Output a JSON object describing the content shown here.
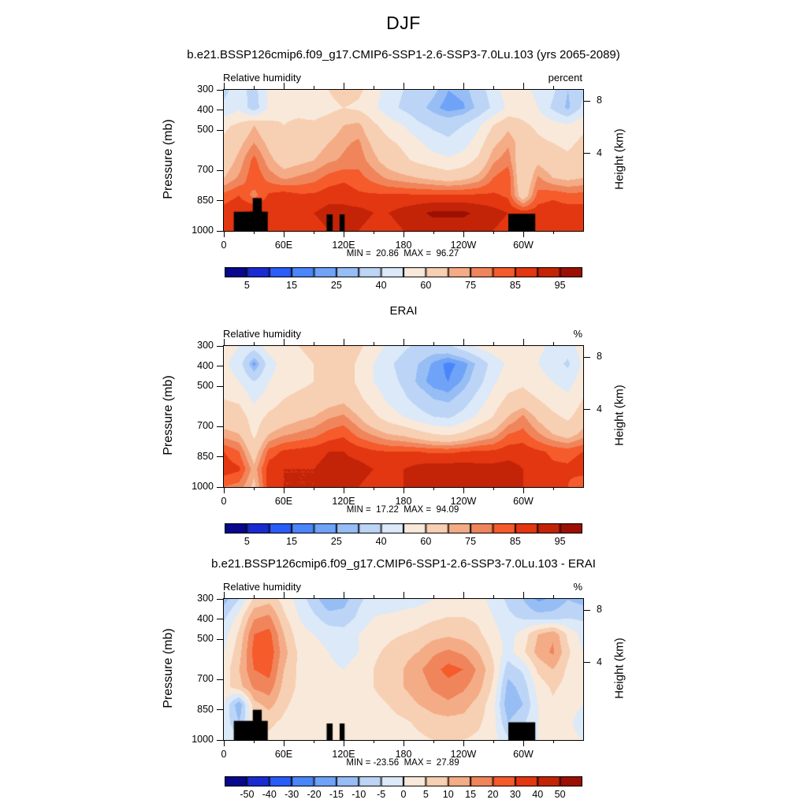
{
  "chart_data": {
    "type": "heatmap",
    "title": "DJF",
    "x_axis": {
      "range": [
        0,
        360
      ],
      "major": [
        {
          "label": "0",
          "lon": 0
        },
        {
          "label": "60E",
          "lon": 60
        },
        {
          "label": "120E",
          "lon": 120
        },
        {
          "label": "180",
          "lon": 180
        },
        {
          "label": "120W",
          "lon": 240
        },
        {
          "label": "60W",
          "lon": 300
        }
      ],
      "minor": [
        30,
        90,
        150,
        210,
        270,
        330
      ]
    },
    "y_axis": {
      "label": "Pressure (mb)",
      "range": [
        300,
        1000
      ],
      "ticks": [
        {
          "label": "300",
          "p": 300
        },
        {
          "label": "400",
          "p": 400
        },
        {
          "label": "500",
          "p": 500
        },
        {
          "label": "700",
          "p": 700
        },
        {
          "label": "850",
          "p": 850
        },
        {
          "label": "1000",
          "p": 1000
        }
      ]
    },
    "y2_axis": {
      "label": "Height (km)",
      "ticks": [
        {
          "label": "8",
          "p": 356
        },
        {
          "label": "4",
          "p": 616
        }
      ]
    },
    "palette": [
      "#08088c",
      "#1b2bd2",
      "#2a5cf8",
      "#4a86fa",
      "#6fa3f8",
      "#97bdf5",
      "#bcd5f6",
      "#dbe9f8",
      "#f9e9da",
      "#f7cfb2",
      "#f4ac87",
      "#f0855c",
      "#f55b2b",
      "#e33711",
      "#c32407",
      "#9c1003"
    ],
    "grid_lons": [
      0,
      15,
      30,
      45,
      60,
      75,
      90,
      105,
      120,
      135,
      150,
      165,
      180,
      195,
      210,
      225,
      240,
      255,
      270,
      285,
      300,
      315,
      330,
      345,
      360
    ],
    "grid_pressures": [
      300,
      387.5,
      475,
      562.5,
      650,
      737.5,
      825,
      912.5,
      1000
    ],
    "panels": [
      {
        "title": "b.e21.BSSP126cmip6.f09_g17.CMIP6-SSP1-2.6-SSP3-7.0Lu.103 (yrs 2065-2089)",
        "field_label": "Relative humidity",
        "units": "percent",
        "minmax": "MIN =  20.86  MAX =  96.27",
        "levels": [
          5,
          10,
          15,
          20,
          25,
          30,
          40,
          50,
          60,
          70,
          75,
          80,
          85,
          90,
          95
        ],
        "bar_labels": [
          {
            "label": "5",
            "boundary": 1
          },
          {
            "label": "15",
            "boundary": 3
          },
          {
            "label": "25",
            "boundary": 5
          },
          {
            "label": "40",
            "boundary": 7
          },
          {
            "label": "60",
            "boundary": 9
          },
          {
            "label": "75",
            "boundary": 11
          },
          {
            "label": "85",
            "boundary": 13
          },
          {
            "label": "95",
            "boundary": 15
          }
        ],
        "grid": [
          [
            38,
            44,
            36,
            52,
            58,
            55,
            52,
            60,
            65,
            62,
            55,
            45,
            40,
            38,
            32,
            25,
            27,
            35,
            45,
            55,
            52,
            48,
            42,
            30,
            38
          ],
          [
            42,
            48,
            34,
            52,
            58,
            57,
            55,
            57,
            60,
            58,
            52,
            44,
            38,
            33,
            27,
            22,
            24,
            32,
            42,
            52,
            55,
            50,
            38,
            28,
            42
          ],
          [
            58,
            62,
            70,
            63,
            60,
            62,
            62,
            65,
            70,
            72,
            62,
            55,
            50,
            42,
            38,
            36,
            40,
            48,
            60,
            68,
            62,
            58,
            54,
            52,
            58
          ],
          [
            62,
            68,
            75,
            68,
            64,
            65,
            66,
            70,
            74,
            76,
            68,
            62,
            58,
            52,
            45,
            42,
            46,
            55,
            68,
            74,
            66,
            62,
            60,
            58,
            62
          ],
          [
            65,
            72,
            82,
            72,
            66,
            68,
            70,
            74,
            76,
            78,
            72,
            66,
            62,
            58,
            55,
            52,
            55,
            62,
            74,
            78,
            62,
            68,
            64,
            62,
            65
          ],
          [
            70,
            76,
            84,
            78,
            74,
            76,
            78,
            82,
            84,
            82,
            78,
            74,
            72,
            70,
            68,
            66,
            68,
            72,
            80,
            84,
            60,
            76,
            70,
            68,
            70
          ],
          [
            82,
            85,
            78,
            86,
            88,
            86,
            86,
            88,
            88,
            86,
            86,
            86,
            86,
            86,
            86,
            86,
            86,
            86,
            86,
            84,
            64,
            82,
            84,
            82,
            82
          ],
          [
            88,
            90,
            92,
            90,
            90,
            90,
            90,
            92,
            92,
            92,
            90,
            90,
            92,
            94,
            96,
            96,
            96,
            94,
            92,
            90,
            88,
            88,
            88,
            88,
            88
          ],
          [
            88,
            90,
            90,
            88,
            88,
            88,
            88,
            90,
            90,
            90,
            88,
            88,
            90,
            92,
            92,
            92,
            92,
            92,
            90,
            88,
            86,
            86,
            86,
            88,
            88
          ]
        ],
        "mask": [
          {
            "lon0": 10,
            "lon1": 44,
            "p0": 905
          },
          {
            "lon0": 29,
            "lon1": 38,
            "p0": 837
          },
          {
            "lon0": 103,
            "lon1": 109,
            "p0": 918
          },
          {
            "lon0": 116,
            "lon1": 121,
            "p0": 918
          },
          {
            "lon0": 285,
            "lon1": 312,
            "p0": 915
          }
        ]
      },
      {
        "title": "ERAI",
        "field_label": "Relative humidity",
        "units": "%",
        "minmax": "MIN =  17.22  MAX =  94.09",
        "levels": [
          5,
          10,
          15,
          20,
          25,
          30,
          40,
          50,
          60,
          70,
          75,
          80,
          85,
          90,
          95
        ],
        "bar_labels": [
          {
            "label": "5",
            "boundary": 1
          },
          {
            "label": "15",
            "boundary": 3
          },
          {
            "label": "25",
            "boundary": 5
          },
          {
            "label": "40",
            "boundary": 7
          },
          {
            "label": "60",
            "boundary": 9
          },
          {
            "label": "75",
            "boundary": 11
          },
          {
            "label": "85",
            "boundary": 13
          },
          {
            "label": "95",
            "boundary": 15
          }
        ],
        "grid": [
          [
            55,
            50,
            45,
            55,
            58,
            60,
            62,
            66,
            68,
            62,
            55,
            48,
            42,
            38,
            35,
            38,
            45,
            52,
            56,
            58,
            55,
            52,
            48,
            45,
            55
          ],
          [
            52,
            45,
            22,
            45,
            55,
            58,
            60,
            64,
            66,
            58,
            50,
            42,
            36,
            30,
            24,
            18,
            22,
            32,
            44,
            52,
            55,
            50,
            45,
            38,
            52
          ],
          [
            55,
            50,
            40,
            50,
            56,
            58,
            60,
            63,
            65,
            58,
            50,
            44,
            38,
            28,
            22,
            20,
            26,
            36,
            48,
            56,
            58,
            54,
            50,
            46,
            55
          ],
          [
            60,
            58,
            48,
            55,
            60,
            62,
            63,
            66,
            68,
            62,
            55,
            48,
            42,
            36,
            30,
            28,
            34,
            44,
            54,
            62,
            64,
            60,
            55,
            52,
            60
          ],
          [
            65,
            65,
            55,
            62,
            65,
            68,
            70,
            74,
            76,
            70,
            62,
            55,
            50,
            44,
            40,
            38,
            44,
            52,
            60,
            70,
            76,
            68,
            62,
            58,
            65
          ],
          [
            72,
            70,
            58,
            70,
            74,
            76,
            78,
            82,
            84,
            78,
            74,
            70,
            68,
            64,
            60,
            58,
            62,
            68,
            72,
            80,
            82,
            76,
            70,
            66,
            72
          ],
          [
            85,
            80,
            65,
            82,
            86,
            87,
            88,
            90,
            90,
            88,
            86,
            85,
            85,
            85,
            84,
            84,
            85,
            86,
            86,
            88,
            88,
            86,
            84,
            83,
            85
          ],
          [
            88,
            86,
            72,
            88,
            90,
            90,
            90,
            92,
            92,
            92,
            90,
            90,
            90,
            92,
            93,
            93,
            93,
            92,
            92,
            92,
            90,
            88,
            86,
            86,
            88
          ],
          [
            80,
            78,
            68,
            88,
            90,
            90,
            90,
            90,
            90,
            90,
            88,
            88,
            90,
            92,
            92,
            92,
            92,
            92,
            92,
            92,
            90,
            88,
            86,
            85,
            80
          ]
        ],
        "mask": []
      },
      {
        "title": "b.e21.BSSP126cmip6.f09_g17.CMIP6-SSP1-2.6-SSP3-7.0Lu.103 - ERAI",
        "field_label": "Relative humidity",
        "units": "%",
        "minmax": "MIN = -23.56  MAX =  27.89",
        "levels": [
          -50,
          -40,
          -30,
          -20,
          -15,
          -10,
          -5,
          0,
          5,
          10,
          15,
          20,
          30,
          40,
          50
        ],
        "bar_labels": [
          {
            "label": "-50",
            "boundary": 1
          },
          {
            "label": "-40",
            "boundary": 2
          },
          {
            "label": "-30",
            "boundary": 3
          },
          {
            "label": "-20",
            "boundary": 4
          },
          {
            "label": "-15",
            "boundary": 5
          },
          {
            "label": "-10",
            "boundary": 6
          },
          {
            "label": "-5",
            "boundary": 7
          },
          {
            "label": "0",
            "boundary": 8
          },
          {
            "label": "5",
            "boundary": 9
          },
          {
            "label": "10",
            "boundary": 10
          },
          {
            "label": "15",
            "boundary": 11
          },
          {
            "label": "20",
            "boundary": 12
          },
          {
            "label": "30",
            "boundary": 13
          },
          {
            "label": "40",
            "boundary": 14
          },
          {
            "label": "50",
            "boundary": 15
          }
        ],
        "grid": [
          [
            -12,
            -5,
            6,
            8,
            3,
            -2,
            -8,
            -14,
            -12,
            -6,
            -3,
            -4,
            -3,
            -2,
            0,
            2,
            3,
            2,
            -2,
            -6,
            -10,
            -16,
            -14,
            -10,
            -12
          ],
          [
            -6,
            2,
            14,
            16,
            6,
            0,
            -4,
            -8,
            -8,
            -4,
            0,
            1,
            2,
            3,
            4,
            5,
            5,
            4,
            0,
            -4,
            -6,
            -8,
            -8,
            -6,
            -6
          ],
          [
            -2,
            6,
            20,
            22,
            10,
            2,
            0,
            -2,
            -3,
            0,
            3,
            4,
            5,
            6,
            8,
            9,
            8,
            6,
            2,
            -2,
            2,
            10,
            14,
            4,
            -2
          ],
          [
            0,
            8,
            22,
            24,
            12,
            4,
            2,
            0,
            -2,
            0,
            4,
            6,
            8,
            10,
            14,
            16,
            14,
            10,
            4,
            -2,
            4,
            12,
            16,
            6,
            0
          ],
          [
            2,
            10,
            20,
            22,
            10,
            4,
            2,
            1,
            0,
            2,
            5,
            8,
            10,
            14,
            18,
            22,
            20,
            14,
            6,
            -8,
            -4,
            6,
            10,
            4,
            2
          ],
          [
            3,
            8,
            16,
            18,
            8,
            4,
            2,
            1,
            0,
            2,
            5,
            8,
            10,
            12,
            16,
            18,
            16,
            12,
            4,
            -12,
            -8,
            2,
            6,
            3,
            3
          ],
          [
            0,
            -14,
            8,
            12,
            6,
            3,
            2,
            1,
            0,
            1,
            3,
            5,
            8,
            10,
            12,
            14,
            12,
            8,
            2,
            -14,
            -10,
            0,
            4,
            2,
            0
          ],
          [
            -2,
            -10,
            4,
            6,
            4,
            2,
            1,
            0,
            0,
            1,
            2,
            3,
            4,
            6,
            8,
            8,
            8,
            6,
            2,
            -10,
            -6,
            0,
            2,
            1,
            -2
          ],
          [
            0,
            -4,
            3,
            4,
            3,
            2,
            1,
            0,
            0,
            1,
            2,
            2,
            3,
            4,
            5,
            5,
            5,
            4,
            2,
            -4,
            -3,
            0,
            1,
            1,
            0
          ]
        ],
        "mask": [
          {
            "lon0": 10,
            "lon1": 44,
            "p0": 905
          },
          {
            "lon0": 29,
            "lon1": 38,
            "p0": 850
          },
          {
            "lon0": 103,
            "lon1": 109,
            "p0": 918
          },
          {
            "lon0": 116,
            "lon1": 121,
            "p0": 918
          },
          {
            "lon0": 285,
            "lon1": 312,
            "p0": 912
          }
        ]
      }
    ]
  }
}
